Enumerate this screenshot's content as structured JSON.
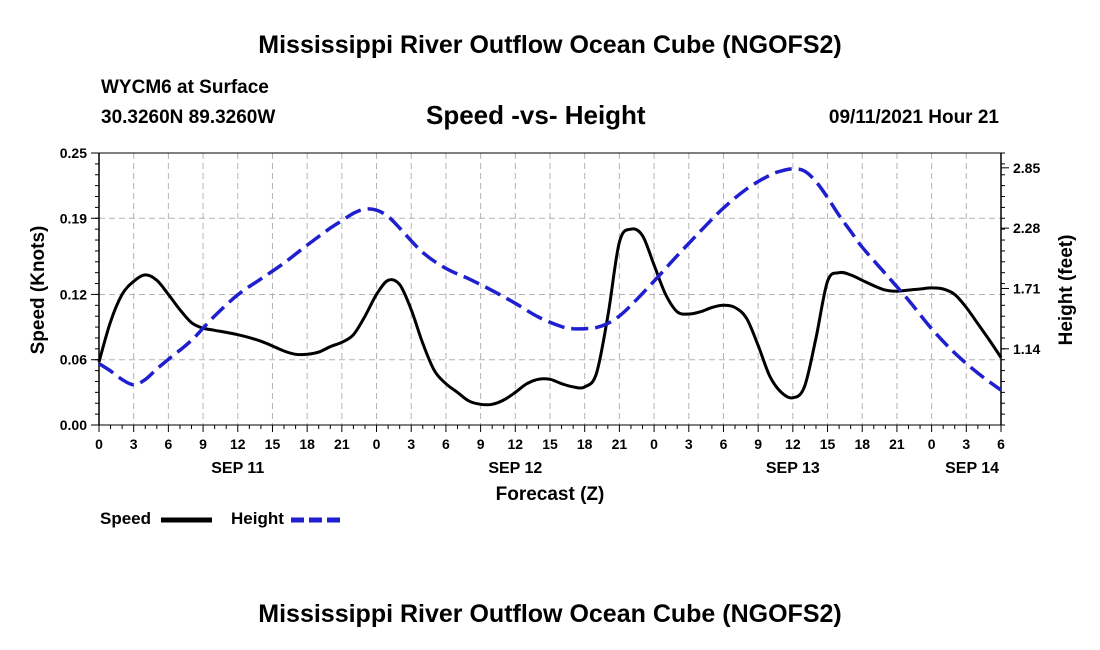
{
  "header": {
    "title": "Mississippi River Outflow Ocean Cube (NGOFS2)",
    "station": "WYCM6 at Surface",
    "coords": "30.3260N  89.3260W",
    "subtitle": "Speed -vs- Height",
    "timestamp": "09/11/2021 Hour 21"
  },
  "footer": {
    "title": "Mississippi River Outflow Ocean Cube (NGOFS2)"
  },
  "legend": {
    "speed_label": "Speed",
    "height_label": "Height"
  },
  "colors": {
    "speed": "#000000",
    "height": "#1f1fd0",
    "grid": "#b4b4b4"
  },
  "chart_data": {
    "type": "line",
    "title": "Speed -vs- Height",
    "xlabel": "Forecast (Z)",
    "ylabel": "Speed (Knots)",
    "y2label": "Height (feet)",
    "xlim": [
      0,
      78
    ],
    "ylim": [
      0,
      0.25
    ],
    "y2lim": [
      0.42,
      2.99
    ],
    "x_ticks": [
      0,
      3,
      6,
      9,
      12,
      15,
      18,
      21,
      24,
      27,
      30,
      33,
      36,
      39,
      42,
      45,
      48,
      51,
      54,
      57,
      60,
      63,
      66,
      69,
      72,
      75,
      78
    ],
    "x_tick_labels": [
      "0",
      "3",
      "6",
      "9",
      "12",
      "15",
      "18",
      "21",
      "0",
      "3",
      "6",
      "9",
      "12",
      "15",
      "18",
      "21",
      "0",
      "3",
      "6",
      "9",
      "12",
      "15",
      "18",
      "21",
      "0",
      "3",
      "6"
    ],
    "date_labels": [
      {
        "x": 12,
        "label": "SEP 11"
      },
      {
        "x": 36,
        "label": "SEP 12"
      },
      {
        "x": 60,
        "label": "SEP 13"
      },
      {
        "x": 75.5,
        "label": "SEP 14"
      }
    ],
    "y_ticks": [
      0.0,
      0.06,
      0.12,
      0.19,
      0.25
    ],
    "y_tick_labels": [
      "0.00",
      "0.06",
      "0.12",
      "0.19",
      "0.25"
    ],
    "y2_ticks": [
      1.14,
      1.71,
      2.28,
      2.85
    ],
    "y2_tick_labels": [
      "1.14",
      "1.71",
      "2.28",
      "2.85"
    ],
    "series": [
      {
        "name": "Speed",
        "axis": "left",
        "style": "solid",
        "x": [
          0,
          1,
          2,
          3,
          4,
          5,
          6,
          7,
          8,
          9,
          10,
          12,
          14,
          16,
          17,
          18,
          19,
          20,
          21,
          22,
          23,
          24,
          25,
          26,
          27,
          28,
          29,
          30,
          31,
          32,
          33,
          34,
          35,
          36,
          37,
          38,
          39,
          40,
          41,
          42,
          43,
          44,
          45,
          46,
          47,
          48,
          49,
          50,
          51,
          52,
          53,
          54,
          55,
          56,
          57,
          58,
          59,
          60,
          61,
          62,
          63,
          64,
          65,
          66,
          67,
          68,
          69,
          70,
          71,
          72,
          73,
          74,
          75,
          76,
          77,
          78
        ],
        "values": [
          0.058,
          0.095,
          0.12,
          0.132,
          0.138,
          0.133,
          0.12,
          0.106,
          0.094,
          0.089,
          0.087,
          0.083,
          0.077,
          0.068,
          0.065,
          0.065,
          0.067,
          0.072,
          0.076,
          0.083,
          0.1,
          0.12,
          0.133,
          0.129,
          0.106,
          0.075,
          0.05,
          0.038,
          0.03,
          0.022,
          0.019,
          0.019,
          0.023,
          0.03,
          0.038,
          0.042,
          0.042,
          0.038,
          0.035,
          0.035,
          0.047,
          0.1,
          0.168,
          0.18,
          0.174,
          0.147,
          0.12,
          0.104,
          0.102,
          0.104,
          0.108,
          0.11,
          0.108,
          0.098,
          0.073,
          0.045,
          0.03,
          0.025,
          0.035,
          0.08,
          0.132,
          0.14,
          0.138,
          0.133,
          0.128,
          0.124,
          0.123,
          0.124,
          0.125,
          0.126,
          0.125,
          0.12,
          0.108,
          0.093,
          0.078,
          0.062
        ]
      },
      {
        "name": "Height",
        "axis": "right",
        "style": "dashed",
        "x": [
          0,
          1,
          2,
          3,
          4,
          5,
          6,
          8,
          10,
          12,
          14,
          16,
          18,
          20,
          21,
          22,
          23,
          24,
          25,
          26,
          28,
          30,
          32,
          34,
          36,
          38,
          40,
          41,
          42,
          43,
          44,
          45,
          46,
          48,
          50,
          52,
          54,
          56,
          58,
          59,
          60,
          61,
          62,
          63,
          64,
          65,
          66,
          68,
          70,
          72,
          74,
          76,
          78
        ],
        "values": [
          1.0,
          0.93,
          0.85,
          0.8,
          0.85,
          0.95,
          1.04,
          1.22,
          1.45,
          1.65,
          1.8,
          1.95,
          2.12,
          2.28,
          2.35,
          2.42,
          2.46,
          2.45,
          2.39,
          2.28,
          2.05,
          1.9,
          1.8,
          1.69,
          1.57,
          1.44,
          1.35,
          1.33,
          1.33,
          1.34,
          1.38,
          1.45,
          1.55,
          1.78,
          2.02,
          2.25,
          2.47,
          2.65,
          2.78,
          2.82,
          2.84,
          2.82,
          2.72,
          2.57,
          2.4,
          2.25,
          2.1,
          1.85,
          1.6,
          1.33,
          1.1,
          0.91,
          0.75
        ]
      }
    ]
  }
}
